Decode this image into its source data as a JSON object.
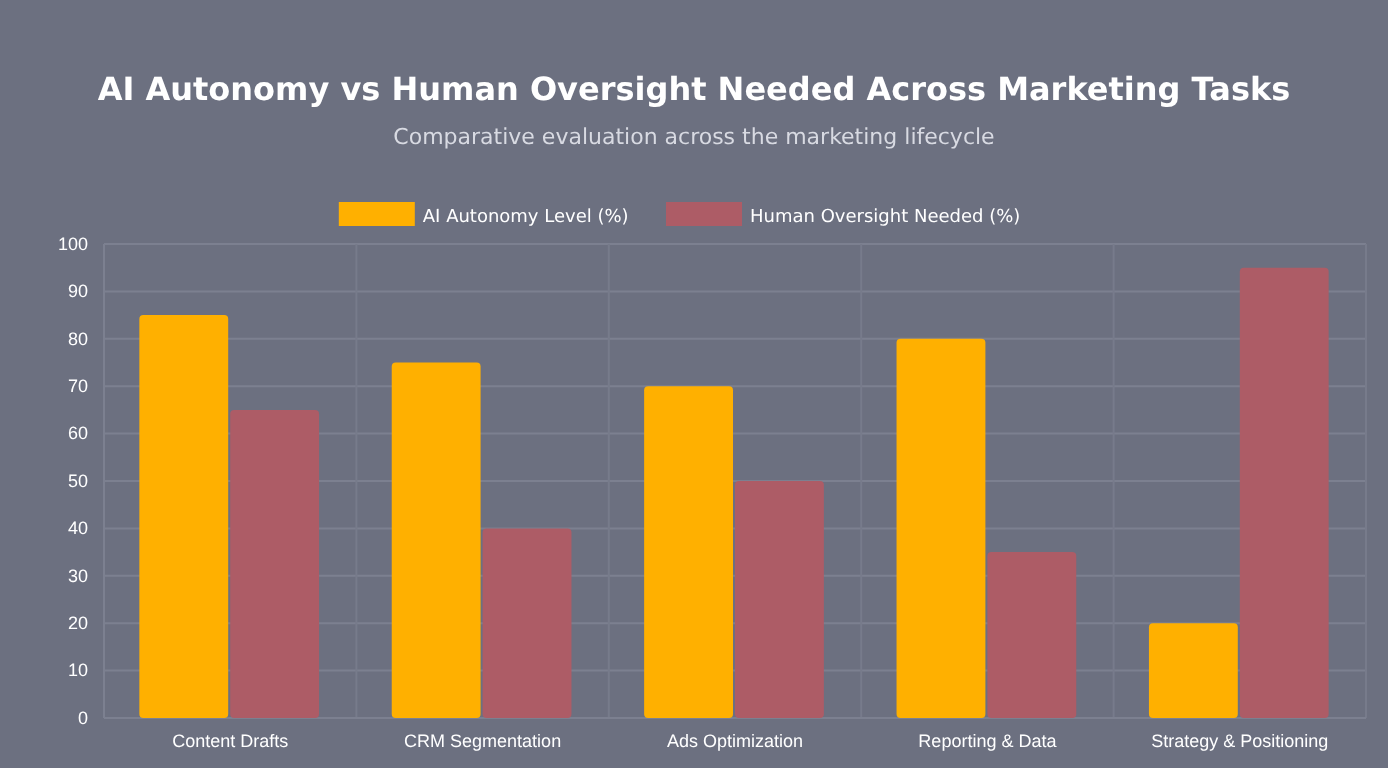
{
  "chart_data": {
    "type": "bar",
    "title": "AI Autonomy vs Human Oversight Needed Across Marketing Tasks",
    "subtitle": "Comparative evaluation across the marketing lifecycle",
    "categories": [
      "Content Drafts",
      "CRM Segmentation",
      "Ads Optimization",
      "Reporting & Data",
      "Strategy & Positioning"
    ],
    "series": [
      {
        "name": "AI Autonomy Level (%)",
        "color": "#ffb000",
        "values": [
          85,
          75,
          70,
          80,
          20
        ]
      },
      {
        "name": "Human Oversight Needed (%)",
        "color": "#ad5c66",
        "values": [
          65,
          40,
          50,
          35,
          95
        ]
      }
    ],
    "ylim": [
      0,
      100
    ],
    "yticks": [
      0,
      10,
      20,
      30,
      40,
      50,
      60,
      70,
      80,
      90,
      100
    ],
    "grid": true,
    "legend": "top"
  }
}
